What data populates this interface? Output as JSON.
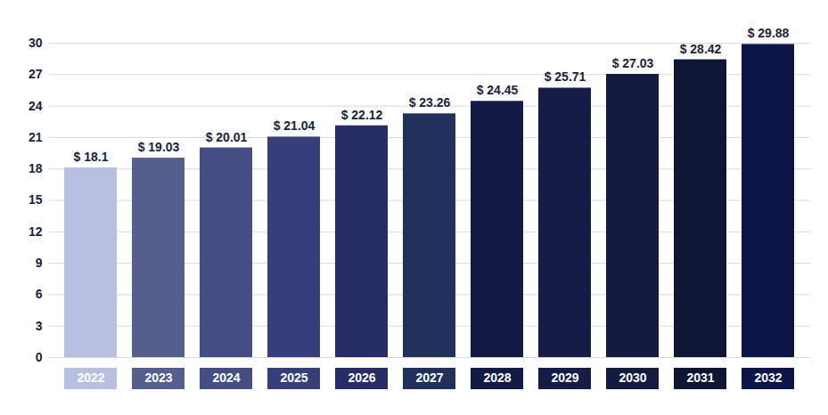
{
  "chart_data": {
    "type": "bar",
    "categories": [
      "2022",
      "2023",
      "2024",
      "2025",
      "2026",
      "2027",
      "2028",
      "2029",
      "2030",
      "2031",
      "2032"
    ],
    "values": [
      18.1,
      19.03,
      20.01,
      21.04,
      22.12,
      23.26,
      24.45,
      25.71,
      27.03,
      28.42,
      29.88
    ],
    "value_labels": [
      "$ 18.1",
      "$ 19.03",
      "$ 20.01",
      "$ 21.04",
      "$ 22.12",
      "$ 23.26",
      "$ 24.45",
      "$ 25.71",
      "$ 27.03",
      "$ 28.42",
      "$ 29.88"
    ],
    "colors": [
      "#b8c0e2",
      "#545f8e",
      "#444e85",
      "#363f79",
      "#262d66",
      "#22305c",
      "#131a46",
      "#151c47",
      "#141a40",
      "#0e1535",
      "#0b1547"
    ],
    "ylim": [
      0,
      30
    ],
    "yticks": [
      0,
      3,
      6,
      9,
      12,
      15,
      18,
      21,
      24,
      27,
      30
    ],
    "grid": true,
    "data_labels": true
  }
}
